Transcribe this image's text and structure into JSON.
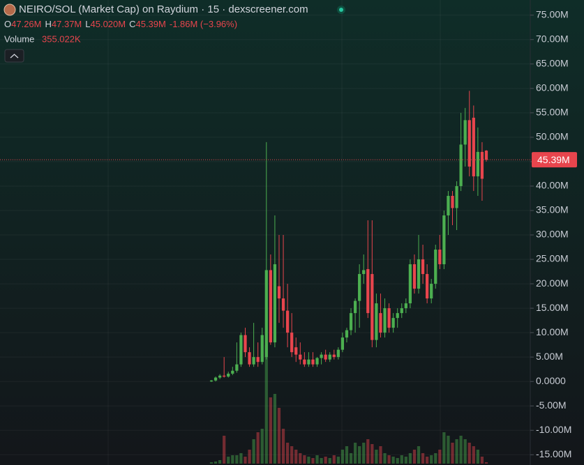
{
  "chart_data": {
    "type": "candlestick",
    "title": "NEIRO/SOL (Market Cap) on Raydium · 15 · dexscreener.com",
    "ohlc_legend": [
      {
        "key": "O",
        "value": "47.26M"
      },
      {
        "key": "H",
        "value": "47.37M"
      },
      {
        "key": "L",
        "value": "45.020M"
      },
      {
        "key": "C",
        "value": "45.39M"
      }
    ],
    "change": "-1.86M (−3.96%)",
    "volume_label": "Volume",
    "volume_value": "355.022K",
    "up_color": "#4caf50",
    "down_color": "#e8454d",
    "ylim": [
      -17.1,
      78.1
    ],
    "yticks": [
      {
        "value": 75,
        "label": "75.00M"
      },
      {
        "value": 70,
        "label": "70.00M"
      },
      {
        "value": 65,
        "label": "65.00M"
      },
      {
        "value": 60,
        "label": "60.00M"
      },
      {
        "value": 55,
        "label": "55.00M"
      },
      {
        "value": 50,
        "label": "50.00M"
      },
      {
        "value": 45,
        "label": "45.00M"
      },
      {
        "value": 40,
        "label": "40.00M"
      },
      {
        "value": 35,
        "label": "35.00M"
      },
      {
        "value": 30,
        "label": "30.00M"
      },
      {
        "value": 25,
        "label": "25.00M"
      },
      {
        "value": 20,
        "label": "20.00M"
      },
      {
        "value": 15,
        "label": "15.00M"
      },
      {
        "value": 10,
        "label": "10.00M"
      },
      {
        "value": 5,
        "label": "5.00M"
      },
      {
        "value": 0,
        "label": "0.0000"
      },
      {
        "value": -5,
        "label": "-5.00M"
      },
      {
        "value": -10,
        "label": "-10.00M"
      },
      {
        "value": -15,
        "label": "-15.00M"
      }
    ],
    "current_price": {
      "value": 45.39,
      "label": "45.39M"
    },
    "open": [
      0,
      0.2,
      0.8,
      1.2,
      1,
      1.6,
      2.2,
      3.5,
      9.5,
      6,
      3.5,
      5,
      4,
      5,
      22.8,
      8,
      19.5,
      17,
      14.5,
      10,
      7,
      5.5,
      4.5,
      3.5,
      4.5,
      3.5,
      4.8,
      5.5,
      4.5,
      5.5,
      5,
      6.5,
      9,
      10.5,
      14,
      16.5,
      22,
      23,
      22,
      8.5,
      14,
      10,
      15,
      11,
      13,
      14,
      15,
      16,
      24,
      19,
      25,
      22,
      17,
      20,
      27,
      24,
      34,
      38,
      35.5,
      40,
      48.5,
      53.5,
      54,
      42,
      47,
      47.26
    ],
    "high": [
      0.3,
      1,
      1.5,
      5,
      2,
      3,
      8,
      10,
      11,
      7,
      12,
      8,
      11,
      49,
      26,
      34,
      30,
      30,
      20,
      14,
      9,
      8,
      6,
      6,
      6,
      5,
      6,
      6.5,
      6,
      6.5,
      7,
      10,
      11,
      15,
      17,
      24,
      26,
      33,
      33,
      18,
      18,
      17,
      16,
      14,
      15,
      16,
      17,
      25,
      26,
      30,
      28,
      24,
      21,
      28,
      30,
      35,
      39,
      39,
      41,
      55,
      56,
      59.5,
      56.5,
      52,
      49,
      47.37
    ],
    "low": [
      -0.1,
      0,
      0.5,
      0.8,
      0.8,
      1.3,
      1.8,
      3,
      5,
      3,
      3,
      3,
      3.5,
      4.5,
      7.5,
      7,
      12,
      11,
      7,
      5,
      4,
      3.5,
      3,
      3,
      3,
      3,
      3.5,
      4,
      4,
      4.5,
      4.5,
      6,
      8,
      9.5,
      10,
      11,
      20,
      13,
      7,
      7,
      9,
      9,
      10,
      10,
      11,
      13,
      14,
      15,
      18,
      18,
      20,
      16,
      16,
      19,
      23,
      23,
      30,
      32,
      31,
      39,
      44,
      42,
      39,
      38,
      37,
      45.02
    ],
    "close": [
      0.2,
      0.8,
      1.2,
      1,
      1.6,
      2.2,
      3.5,
      9.5,
      6,
      3.5,
      5,
      4,
      9.5,
      22.8,
      8,
      24,
      17,
      14.5,
      10,
      6,
      5.5,
      4.5,
      3.5,
      4.5,
      3.5,
      4.8,
      5.5,
      4.5,
      5.5,
      5,
      6.5,
      9,
      10.5,
      14,
      16.5,
      22,
      22.8,
      14,
      8.5,
      16,
      10,
      15,
      11,
      13,
      14,
      15,
      16,
      24,
      19,
      25,
      22,
      17,
      20,
      27,
      24,
      34,
      38,
      35.5,
      40,
      48.5,
      53.5,
      44,
      42,
      47,
      41.5,
      45.39
    ],
    "volume": [
      360,
      540,
      900,
      7200,
      1800,
      2160,
      2160,
      2700,
      1800,
      3600,
      6300,
      8100,
      9000,
      30600,
      17100,
      18000,
      14400,
      9000,
      5400,
      4500,
      3600,
      2700,
      2160,
      1800,
      1440,
      2160,
      1440,
      1800,
      1440,
      2160,
      1800,
      3600,
      4500,
      2700,
      5400,
      4500,
      5400,
      6300,
      5040,
      3600,
      4500,
      2700,
      2160,
      1800,
      1440,
      2160,
      1800,
      2700,
      3600,
      4500,
      2700,
      1800,
      2160,
      2700,
      3600,
      8100,
      7200,
      5400,
      6300,
      7200,
      6300,
      5400,
      4500,
      3600,
      1800,
      355.022
    ]
  }
}
